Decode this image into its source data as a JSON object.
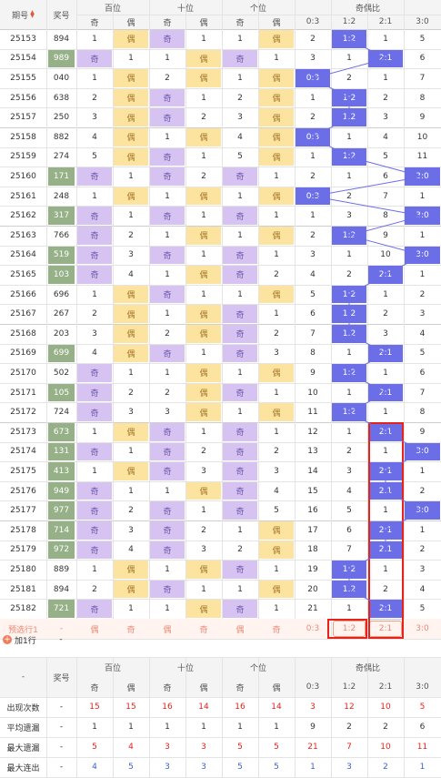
{
  "header": {
    "period": "期号",
    "number": "奖号",
    "groups": [
      "百位",
      "十位",
      "个位",
      "奇偶比"
    ],
    "sub": [
      "奇",
      "偶",
      "奇",
      "偶",
      "奇",
      "偶",
      "0:3",
      "1:2",
      "2:1",
      "3:0"
    ],
    "sort_icon": "sort-icon"
  },
  "chart_data": {
    "type": "table",
    "title": "",
    "columns": [
      "期号",
      "奖号",
      "百位-奇",
      "百位-偶",
      "十位-奇",
      "十位-偶",
      "个位-奇",
      "个位-偶",
      "0:3",
      "1:2",
      "2:1",
      "3:0"
    ],
    "rows": [
      {
        "p": "25153",
        "n": "894",
        "c": [
          "1",
          "偶",
          "奇",
          "1",
          "1",
          "偶",
          "2",
          "1:2",
          "1",
          "5"
        ]
      },
      {
        "p": "25154",
        "n": "989",
        "c": [
          "奇",
          "1",
          "1",
          "偶",
          "奇",
          "1",
          "3",
          "1",
          "2:1",
          "6"
        ]
      },
      {
        "p": "25155",
        "n": "040",
        "c": [
          "1",
          "偶",
          "2",
          "偶",
          "1",
          "偶",
          "0:3",
          "2",
          "1",
          "7"
        ]
      },
      {
        "p": "25156",
        "n": "638",
        "c": [
          "2",
          "偶",
          "奇",
          "1",
          "2",
          "偶",
          "1",
          "1:2",
          "2",
          "8"
        ]
      },
      {
        "p": "25157",
        "n": "250",
        "c": [
          "3",
          "偶",
          "奇",
          "2",
          "3",
          "偶",
          "2",
          "1:2",
          "3",
          "9"
        ]
      },
      {
        "p": "25158",
        "n": "882",
        "c": [
          "4",
          "偶",
          "1",
          "偶",
          "4",
          "偶",
          "0:3",
          "1",
          "4",
          "10"
        ]
      },
      {
        "p": "25159",
        "n": "274",
        "c": [
          "5",
          "偶",
          "奇",
          "1",
          "5",
          "偶",
          "1",
          "1:2",
          "5",
          "11"
        ]
      },
      {
        "p": "25160",
        "n": "171",
        "c": [
          "奇",
          "1",
          "奇",
          "2",
          "奇",
          "1",
          "2",
          "1",
          "6",
          "3:0"
        ]
      },
      {
        "p": "25161",
        "n": "248",
        "c": [
          "1",
          "偶",
          "1",
          "偶",
          "1",
          "偶",
          "0:3",
          "2",
          "7",
          "1"
        ]
      },
      {
        "p": "25162",
        "n": "317",
        "c": [
          "奇",
          "1",
          "奇",
          "1",
          "奇",
          "1",
          "1",
          "3",
          "8",
          "3:0"
        ]
      },
      {
        "p": "25163",
        "n": "766",
        "c": [
          "奇",
          "2",
          "1",
          "偶",
          "1",
          "偶",
          "2",
          "1:2",
          "9",
          "1"
        ]
      },
      {
        "p": "25164",
        "n": "519",
        "c": [
          "奇",
          "3",
          "奇",
          "1",
          "奇",
          "1",
          "3",
          "1",
          "10",
          "3:0"
        ]
      },
      {
        "p": "25165",
        "n": "103",
        "c": [
          "奇",
          "4",
          "1",
          "偶",
          "奇",
          "2",
          "4",
          "2",
          "2:1",
          "1"
        ]
      },
      {
        "p": "25166",
        "n": "696",
        "c": [
          "1",
          "偶",
          "奇",
          "1",
          "1",
          "偶",
          "5",
          "1:2",
          "1",
          "2"
        ]
      },
      {
        "p": "25167",
        "n": "267",
        "c": [
          "2",
          "偶",
          "1",
          "偶",
          "奇",
          "1",
          "6",
          "1:2",
          "2",
          "3"
        ]
      },
      {
        "p": "25168",
        "n": "203",
        "c": [
          "3",
          "偶",
          "2",
          "偶",
          "奇",
          "2",
          "7",
          "1:2",
          "3",
          "4"
        ]
      },
      {
        "p": "25169",
        "n": "699",
        "c": [
          "4",
          "偶",
          "奇",
          "1",
          "奇",
          "3",
          "8",
          "1",
          "2:1",
          "5"
        ]
      },
      {
        "p": "25170",
        "n": "502",
        "c": [
          "奇",
          "1",
          "1",
          "偶",
          "1",
          "偶",
          "9",
          "1:2",
          "1",
          "6"
        ]
      },
      {
        "p": "25171",
        "n": "105",
        "c": [
          "奇",
          "2",
          "2",
          "偶",
          "奇",
          "1",
          "10",
          "1",
          "2:1",
          "7"
        ]
      },
      {
        "p": "25172",
        "n": "724",
        "c": [
          "奇",
          "3",
          "3",
          "偶",
          "1",
          "偶",
          "11",
          "1:2",
          "1",
          "8"
        ]
      },
      {
        "p": "25173",
        "n": "673",
        "c": [
          "1",
          "偶",
          "奇",
          "1",
          "奇",
          "1",
          "12",
          "1",
          "2:1",
          "9"
        ]
      },
      {
        "p": "25174",
        "n": "131",
        "c": [
          "奇",
          "1",
          "奇",
          "2",
          "奇",
          "2",
          "13",
          "2",
          "1",
          "3:0"
        ]
      },
      {
        "p": "25175",
        "n": "413",
        "c": [
          "1",
          "偶",
          "奇",
          "3",
          "奇",
          "3",
          "14",
          "3",
          "2:1",
          "1"
        ]
      },
      {
        "p": "25176",
        "n": "949",
        "c": [
          "奇",
          "1",
          "1",
          "偶",
          "奇",
          "4",
          "15",
          "4",
          "2:1",
          "2"
        ]
      },
      {
        "p": "25177",
        "n": "977",
        "c": [
          "奇",
          "2",
          "奇",
          "1",
          "奇",
          "5",
          "16",
          "5",
          "1",
          "3:0"
        ]
      },
      {
        "p": "25178",
        "n": "714",
        "c": [
          "奇",
          "3",
          "奇",
          "2",
          "1",
          "偶",
          "17",
          "6",
          "2:1",
          "1"
        ]
      },
      {
        "p": "25179",
        "n": "972",
        "c": [
          "奇",
          "4",
          "奇",
          "3",
          "2",
          "偶",
          "18",
          "7",
          "2:1",
          "2"
        ]
      },
      {
        "p": "25180",
        "n": "889",
        "c": [
          "1",
          "偶",
          "1",
          "偶",
          "奇",
          "1",
          "19",
          "1:2",
          "1",
          "3"
        ]
      },
      {
        "p": "25181",
        "n": "894",
        "c": [
          "2",
          "偶",
          "奇",
          "1",
          "1",
          "偶",
          "20",
          "1:2",
          "2",
          "4"
        ]
      },
      {
        "p": "25182",
        "n": "721",
        "c": [
          "奇",
          "1",
          "1",
          "偶",
          "奇",
          "1",
          "21",
          "1",
          "2:1",
          "5"
        ]
      }
    ]
  },
  "predict": {
    "label": "预选行1",
    "dash": "-",
    "cells": [
      "偶",
      "奇",
      "偶",
      "奇",
      "偶",
      "奇",
      "0:3",
      "1:2",
      "2:1",
      "3:0"
    ]
  },
  "add_row": {
    "label": "加1行",
    "icon": "plus-icon",
    "dash": "-"
  },
  "stats": {
    "dash": "-",
    "number": "奖号",
    "rows": [
      {
        "label": "出现次数",
        "v": [
          "15",
          "15",
          "16",
          "14",
          "16",
          "14",
          "3",
          "12",
          "10",
          "5"
        ]
      },
      {
        "label": "平均遗漏",
        "v": [
          "1",
          "1",
          "1",
          "1",
          "1",
          "1",
          "9",
          "2",
          "2",
          "6"
        ]
      },
      {
        "label": "最大遗漏",
        "v": [
          "5",
          "4",
          "3",
          "3",
          "5",
          "5",
          "21",
          "7",
          "10",
          "11"
        ]
      },
      {
        "label": "最大连出",
        "v": [
          "4",
          "5",
          "3",
          "3",
          "5",
          "5",
          "1",
          "3",
          "2",
          "1"
        ]
      }
    ]
  },
  "colors": {
    "odd": "#d6c3f2",
    "even": "#fde3a0",
    "hot": "#96b087",
    "blue": "#6b6ee6",
    "red": "#e8211b",
    "pred": "#ee8872"
  }
}
